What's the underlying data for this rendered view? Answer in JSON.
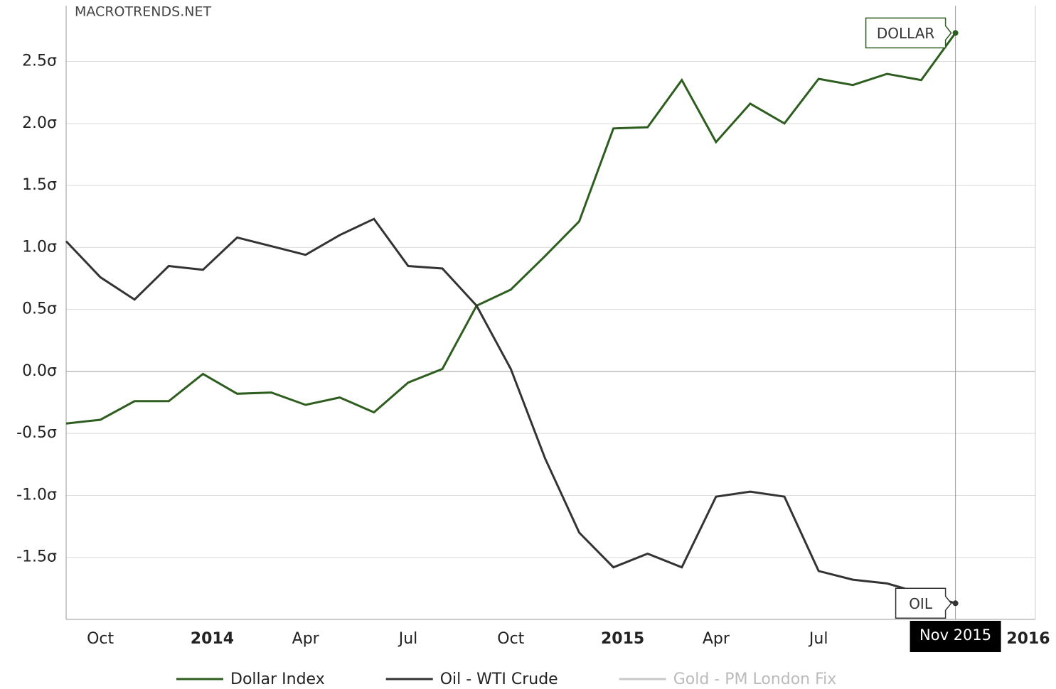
{
  "chart_data": {
    "type": "line",
    "watermark": "MACROTRENDS.NET",
    "categories": [
      null,
      "Oct",
      null,
      null,
      "2014",
      null,
      null,
      "Apr",
      null,
      null,
      "Jul",
      null,
      null,
      "Oct",
      null,
      null,
      "2015",
      null,
      null,
      "Apr",
      null,
      null,
      "Jul",
      null,
      null,
      null,
      "Nov 2015"
    ],
    "end_label": "2016",
    "ylim": [
      -2,
      2.95
    ],
    "yticks": [
      {
        "value": -1.5,
        "label": "-1.5σ"
      },
      {
        "value": -1,
        "label": "-1.0σ"
      },
      {
        "value": -0.5,
        "label": "-0.5σ"
      },
      {
        "value": 0,
        "label": "0.0σ"
      },
      {
        "value": 0.5,
        "label": "0.5σ"
      },
      {
        "value": 1,
        "label": "1.0σ"
      },
      {
        "value": 1.5,
        "label": "1.5σ"
      },
      {
        "value": 2,
        "label": "2.0σ"
      },
      {
        "value": 2.5,
        "label": "2.5σ"
      }
    ],
    "grid": true,
    "series": [
      {
        "name": "Dollar Index",
        "color": "#2e5e1f",
        "flag": "DOLLAR",
        "values": [
          -0.42,
          -0.39,
          -0.24,
          -0.24,
          -0.02,
          -0.18,
          -0.17,
          -0.27,
          -0.21,
          -0.33,
          -0.09,
          0.02,
          0.53,
          0.66,
          0.93,
          1.21,
          1.96,
          1.97,
          2.35,
          1.85,
          2.16,
          2.0,
          2.36,
          2.31,
          2.4,
          2.35,
          2.73
        ]
      },
      {
        "name": "Oil - WTI Crude",
        "color": "#333333",
        "flag": "OIL",
        "values": [
          1.05,
          0.76,
          0.58,
          0.85,
          0.82,
          1.08,
          1.01,
          0.94,
          1.1,
          1.23,
          0.85,
          0.83,
          0.53,
          0.02,
          -0.7,
          -1.3,
          -1.58,
          -1.47,
          -1.58,
          -1.01,
          -0.97,
          -1.01,
          -1.61,
          -1.68,
          -1.71,
          -1.79,
          -1.87
        ]
      }
    ],
    "legend_disabled": [
      {
        "name": "Gold - PM London Fix",
        "color": "#c8c8c8"
      }
    ]
  }
}
